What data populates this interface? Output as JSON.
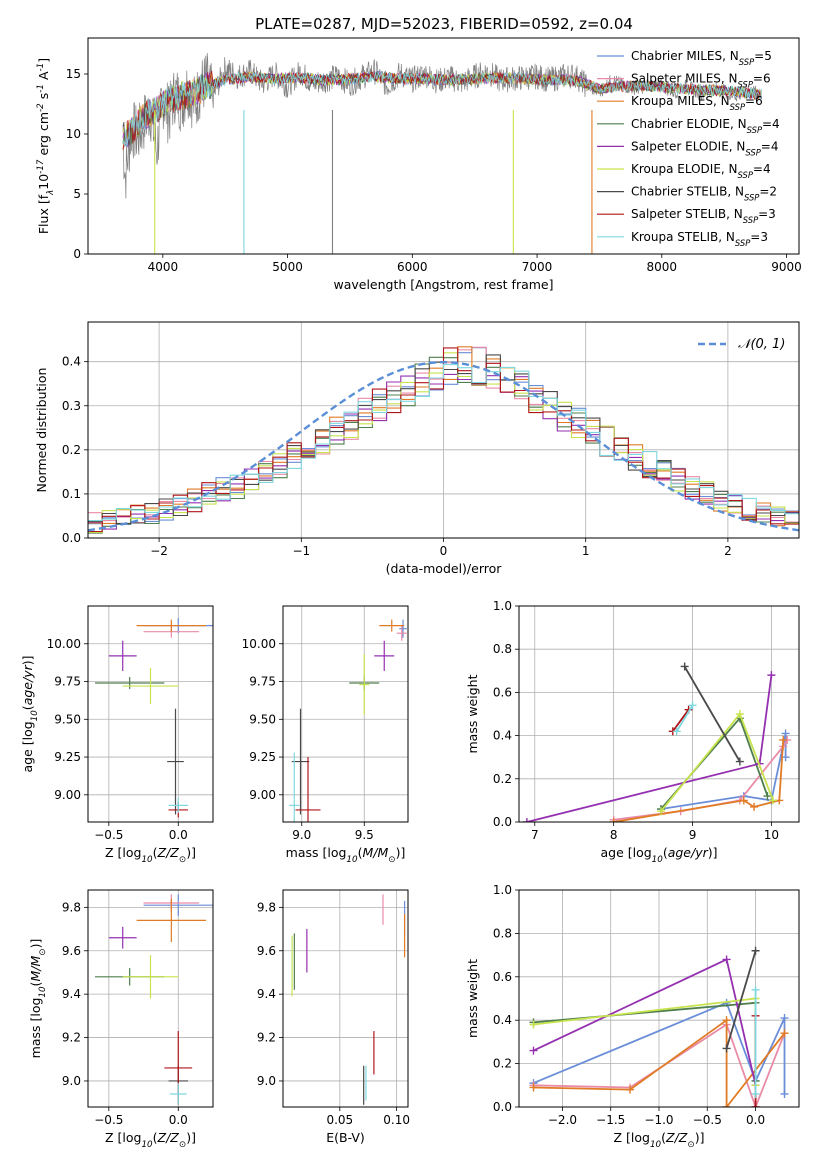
{
  "figure": {
    "title": "PLATE=0287, MJD=52023, FIBERID=0592, z=0.04"
  },
  "models": [
    {
      "name": "Chabrier MILES, N$_{SSP}$=5",
      "color": "#6a8ed8"
    },
    {
      "name": "Salpeter MILES, N$_{SSP}$=6",
      "color": "#e98ba6"
    },
    {
      "name": "Kroupa MILES, N$_{SSP}$=6",
      "color": "#e07b26"
    },
    {
      "name": "Chabrier ELODIE, N$_{SSP}$=4",
      "color": "#4f7f4d"
    },
    {
      "name": "Salpeter ELODIE, N$_{SSP}$=4",
      "color": "#9430b0"
    },
    {
      "name": "Kroupa ELODIE, N$_{SSP}$=4",
      "color": "#c7e34d"
    },
    {
      "name": "Chabrier STELIB, N$_{SSP}$=2",
      "color": "#4a4a4a"
    },
    {
      "name": "Salpeter STELIB, N$_{SSP}$=3",
      "color": "#b0151a"
    },
    {
      "name": "Kroupa STELIB, N$_{SSP}$=3",
      "color": "#7fd8e0"
    }
  ],
  "chart_data": [
    {
      "id": "spectrum",
      "type": "line",
      "xlabel": "wavelength [Angstrom, rest frame]",
      "ylabel": "Flux [f$_\\lambda$10$^{-17}$ erg cm$^{-2}$ s$^{-1}$ A$^{-1}$]",
      "xlim": [
        3400,
        9100
      ],
      "ylim": [
        0,
        18
      ],
      "xticks": [
        4000,
        5000,
        6000,
        7000,
        8000,
        9000
      ],
      "yticks": [
        0,
        5,
        10,
        15
      ],
      "legend": "top-right",
      "grid": false,
      "data_gray": {
        "color": "#808080",
        "x": [
          3680,
          3700,
          3750,
          3800,
          3850,
          3900,
          3950,
          4000,
          4050,
          4100,
          4150,
          4200,
          4250,
          4300,
          4350,
          4400,
          4500,
          4600,
          4700,
          4800,
          4900,
          5000,
          5100,
          5200,
          5300,
          5400,
          5500,
          5600,
          5700,
          5800,
          5900,
          6000,
          6100,
          6200,
          6300,
          6400,
          6500,
          6600,
          6700,
          6800,
          6900,
          7000,
          7100,
          7200,
          7300,
          7400,
          7500,
          7600,
          7700,
          7800,
          7900,
          8000,
          8100,
          8200,
          8300,
          8400,
          8500,
          8600,
          8700,
          8800
        ],
        "y": [
          9.5,
          6.5,
          10.5,
          9.8,
          11.0,
          12.0,
          8.5,
          13.0,
          11.5,
          13.5,
          12.5,
          14.0,
          12.5,
          13.8,
          14.5,
          13.0,
          15.5,
          14.8,
          15.2,
          14.2,
          15.0,
          14.0,
          15.2,
          14.2,
          14.5,
          14.8,
          14.2,
          14.8,
          15.2,
          14.0,
          15.0,
          14.5,
          15.0,
          14.4,
          14.7,
          14.3,
          14.8,
          15.2,
          14.5,
          14.6,
          14.7,
          14.8,
          14.5,
          14.8,
          14.9,
          14.0,
          13.5,
          14.5,
          14.0,
          13.8,
          14.1,
          14.0,
          13.5,
          14.0,
          13.4,
          13.8,
          13.6,
          13.2,
          13.6,
          13.3
        ]
      },
      "data_model": {
        "x": [
          3680,
          3750,
          3850,
          3950,
          4050,
          4150,
          4250,
          4350,
          4500,
          4700,
          4900,
          5100,
          5300,
          5500,
          5700,
          5900,
          6100,
          6300,
          6500,
          6700,
          6900,
          7100,
          7300,
          7500,
          7700,
          7900,
          8100,
          8300,
          8500,
          8700,
          8800
        ],
        "y": [
          9.8,
          10.2,
          11.5,
          12.0,
          12.8,
          13.2,
          13.5,
          14.0,
          14.5,
          14.8,
          14.6,
          14.7,
          14.5,
          14.6,
          14.8,
          14.6,
          14.6,
          14.5,
          14.6,
          14.7,
          14.6,
          14.5,
          14.5,
          13.8,
          14.0,
          14.0,
          13.8,
          13.7,
          13.6,
          13.4,
          13.3
        ]
      },
      "absorption_spikes": [
        {
          "x": 3935,
          "ymin": 0,
          "color": "#c7e34d"
        },
        {
          "x": 4650,
          "ymin": 0,
          "color": "#7fd8e0"
        },
        {
          "x": 5360,
          "ymin": 0,
          "color": "#808080"
        },
        {
          "x": 6810,
          "ymin": 0,
          "color": "#c7e34d"
        },
        {
          "x": 7440,
          "ymin": 0,
          "color": "#e07b26"
        }
      ]
    },
    {
      "id": "residual_hist",
      "type": "line",
      "xlabel": "(data-model)/error",
      "ylabel": "Normed distribution",
      "xlim": [
        -2.5,
        2.5
      ],
      "ylim": [
        0,
        0.49
      ],
      "xticks": [
        -2,
        -1,
        0,
        1,
        2
      ],
      "yticks": [
        0.0,
        0.1,
        0.2,
        0.3,
        0.4
      ],
      "grid": true,
      "legend": "top-right",
      "reference": {
        "name": "$\\mathcal{N}(0,1)$",
        "color": "#5a8fd8"
      },
      "bins_start": -2.5,
      "bin_width": 0.1,
      "base_counts": [
        0.035,
        0.04,
        0.045,
        0.05,
        0.055,
        0.065,
        0.075,
        0.085,
        0.1,
        0.11,
        0.115,
        0.13,
        0.15,
        0.165,
        0.185,
        0.2,
        0.22,
        0.24,
        0.26,
        0.28,
        0.3,
        0.32,
        0.34,
        0.36,
        0.375,
        0.39,
        0.395,
        0.39,
        0.375,
        0.36,
        0.34,
        0.32,
        0.3,
        0.28,
        0.26,
        0.24,
        0.22,
        0.2,
        0.185,
        0.165,
        0.15,
        0.13,
        0.115,
        0.1,
        0.085,
        0.075,
        0.065,
        0.055,
        0.05,
        0.045
      ]
    },
    {
      "id": "age_vs_Z",
      "type": "scatter",
      "xlabel": "Z [log$_{10}$($Z/Z_\\odot$)]",
      "ylabel": "age  [log$_{10}$($age/yr$)]",
      "xlim": [
        -0.65,
        0.25
      ],
      "ylim": [
        8.82,
        10.25
      ],
      "xticks": [
        -0.5,
        0.0
      ],
      "yticks": [
        9.0,
        9.25,
        9.5,
        9.75,
        10.0
      ],
      "grid": true,
      "points": [
        {
          "m": 0,
          "x": 0.0,
          "y": 10.12,
          "xe": 0.25,
          "ye": 0.05
        },
        {
          "m": 1,
          "x": -0.05,
          "y": 10.08,
          "xe": 0.2,
          "ye": 0.04
        },
        {
          "m": 2,
          "x": -0.05,
          "y": 10.12,
          "xe": 0.25,
          "ye": 0.04
        },
        {
          "m": 3,
          "x": -0.35,
          "y": 9.74,
          "xe": 0.25,
          "ye": 0.04
        },
        {
          "m": 4,
          "x": -0.4,
          "y": 9.92,
          "xe": 0.1,
          "ye": 0.1
        },
        {
          "m": 5,
          "x": -0.2,
          "y": 9.72,
          "xe": 0.2,
          "ye": 0.12
        },
        {
          "m": 6,
          "x": -0.02,
          "y": 9.22,
          "xe": 0.06,
          "ye": 0.35
        },
        {
          "m": 7,
          "x": 0.0,
          "y": 8.9,
          "xe": 0.07,
          "ye": 0.05
        },
        {
          "m": 8,
          "x": 0.0,
          "y": 8.93,
          "xe": 0.07,
          "ye": 0.05
        }
      ]
    },
    {
      "id": "age_vs_mass",
      "type": "scatter",
      "xlabel": "mass [log$_{10}$($M/M_\\odot$)]",
      "ylabel": "",
      "xlim": [
        8.85,
        9.85
      ],
      "ylim": [
        8.82,
        10.25
      ],
      "xticks": [
        9.0,
        9.5
      ],
      "yticks": [
        9.0,
        9.25,
        9.5,
        9.75,
        10.0
      ],
      "grid": true,
      "points": [
        {
          "m": 0,
          "x": 9.81,
          "y": 10.1,
          "xe": 0.03,
          "ye": 0.06
        },
        {
          "m": 1,
          "x": 9.8,
          "y": 10.07,
          "xe": 0.04,
          "ye": 0.05
        },
        {
          "m": 2,
          "x": 9.72,
          "y": 10.12,
          "xe": 0.1,
          "ye": 0.04
        },
        {
          "m": 3,
          "x": 9.5,
          "y": 9.74,
          "xe": 0.12,
          "ye": 0.05
        },
        {
          "m": 4,
          "x": 9.66,
          "y": 9.92,
          "xe": 0.08,
          "ye": 0.1
        },
        {
          "m": 5,
          "x": 9.5,
          "y": 9.73,
          "xe": 0.04,
          "ye": 0.2
        },
        {
          "m": 6,
          "x": 8.99,
          "y": 9.22,
          "xe": 0.07,
          "ye": 0.35
        },
        {
          "m": 7,
          "x": 9.05,
          "y": 8.9,
          "xe": 0.1,
          "ye": 0.35
        },
        {
          "m": 8,
          "x": 8.94,
          "y": 8.93,
          "xe": 0.04,
          "ye": 0.35
        }
      ]
    },
    {
      "id": "massweight_vs_age",
      "type": "line",
      "xlabel": "age  [log$_{10}$($age/yr$)]",
      "ylabel": "mass weight",
      "xlim": [
        6.8,
        10.35
      ],
      "ylim": [
        0,
        1.0
      ],
      "xticks": [
        7,
        8,
        9,
        10
      ],
      "yticks": [
        0.0,
        0.2,
        0.4,
        0.6,
        0.8,
        1.0
      ],
      "grid": true,
      "series": [
        {
          "m": 0,
          "x": [
            8.6,
            9.65,
            10.0,
            10.18,
            10.18
          ],
          "y": [
            0.06,
            0.12,
            0.1,
            0.41,
            0.3
          ]
        },
        {
          "m": 1,
          "x": [
            8.0,
            8.85,
            9.6,
            10.15,
            10.2
          ],
          "y": [
            0.01,
            0.05,
            0.1,
            0.35,
            0.38
          ]
        },
        {
          "m": 2,
          "x": [
            8.0,
            9.65,
            9.78,
            10.1,
            10.15
          ],
          "y": [
            0.0,
            0.1,
            0.07,
            0.1,
            0.38
          ]
        },
        {
          "m": 3,
          "x": [
            8.6,
            9.6,
            9.95
          ],
          "y": [
            0.06,
            0.48,
            0.12
          ]
        },
        {
          "m": 4,
          "x": [
            6.9,
            9.85,
            10.0
          ],
          "y": [
            0.0,
            0.27,
            0.68
          ]
        },
        {
          "m": 5,
          "x": [
            8.6,
            9.6,
            10.02
          ],
          "y": [
            0.05,
            0.5,
            0.1
          ]
        },
        {
          "m": 6,
          "x": [
            8.9,
            9.6
          ],
          "y": [
            0.72,
            0.28
          ]
        },
        {
          "m": 7,
          "x": [
            8.75,
            8.95
          ],
          "y": [
            0.42,
            0.52
          ]
        },
        {
          "m": 8,
          "x": [
            8.8,
            9.0
          ],
          "y": [
            0.42,
            0.54
          ]
        }
      ]
    },
    {
      "id": "mass_vs_Z",
      "type": "scatter",
      "xlabel": "Z [log$_{10}$($Z/Z_\\odot$)]",
      "ylabel": "mass [log$_{10}$($M/M_\\odot$)]",
      "xlim": [
        -0.65,
        0.25
      ],
      "ylim": [
        8.88,
        9.88
      ],
      "xticks": [
        -0.5,
        0.0
      ],
      "yticks": [
        9.0,
        9.2,
        9.4,
        9.6,
        9.8
      ],
      "grid": true,
      "points": [
        {
          "m": 0,
          "x": 0.0,
          "y": 9.81,
          "xe": 0.25,
          "ye": 0.05
        },
        {
          "m": 1,
          "x": -0.05,
          "y": 9.82,
          "xe": 0.2,
          "ye": 0.04
        },
        {
          "m": 2,
          "x": -0.05,
          "y": 9.74,
          "xe": 0.25,
          "ye": 0.1
        },
        {
          "m": 3,
          "x": -0.35,
          "y": 9.48,
          "xe": 0.25,
          "ye": 0.04
        },
        {
          "m": 4,
          "x": -0.4,
          "y": 9.66,
          "xe": 0.1,
          "ye": 0.05
        },
        {
          "m": 5,
          "x": -0.2,
          "y": 9.48,
          "xe": 0.2,
          "ye": 0.1
        },
        {
          "m": 6,
          "x": 0.0,
          "y": 9.0,
          "xe": 0.07,
          "ye": 0.07
        },
        {
          "m": 7,
          "x": 0.0,
          "y": 9.06,
          "xe": 0.1,
          "ye": 0.17
        },
        {
          "m": 8,
          "x": 0.0,
          "y": 8.94,
          "xe": 0.06,
          "ye": 0.05
        }
      ]
    },
    {
      "id": "mass_vs_ebv",
      "type": "scatter",
      "xlabel": "E(B-V)",
      "ylabel": "",
      "xlim": [
        0.0,
        0.11
      ],
      "ylim": [
        8.88,
        9.88
      ],
      "xticks": [
        0.05,
        0.1
      ],
      "yticks": [
        9.0,
        9.2,
        9.4,
        9.6,
        9.8
      ],
      "grid": true,
      "points": [
        {
          "m": 0,
          "x": 0.107,
          "y": 9.75,
          "xe": 0,
          "ye": 0.08
        },
        {
          "m": 1,
          "x": 0.088,
          "y": 9.79,
          "xe": 0,
          "ye": 0.07
        },
        {
          "m": 2,
          "x": 0.107,
          "y": 9.67,
          "xe": 0,
          "ye": 0.1
        },
        {
          "m": 3,
          "x": 0.01,
          "y": 9.55,
          "xe": 0,
          "ye": 0.13
        },
        {
          "m": 4,
          "x": 0.021,
          "y": 9.6,
          "xe": 0,
          "ye": 0.1
        },
        {
          "m": 5,
          "x": 0.008,
          "y": 9.53,
          "xe": 0,
          "ye": 0.14
        },
        {
          "m": 6,
          "x": 0.071,
          "y": 8.98,
          "xe": 0,
          "ye": 0.09
        },
        {
          "m": 7,
          "x": 0.08,
          "y": 9.13,
          "xe": 0,
          "ye": 0.1
        },
        {
          "m": 8,
          "x": 0.073,
          "y": 8.99,
          "xe": 0,
          "ye": 0.08
        }
      ]
    },
    {
      "id": "massweight_vs_Z",
      "type": "line",
      "xlabel": "Z [log$_{10}$($Z/Z_\\odot$)]",
      "ylabel": "mass weight",
      "xlim": [
        -2.45,
        0.45
      ],
      "ylim": [
        0,
        1.0
      ],
      "xticks": [
        -2.0,
        -1.5,
        -1.0,
        -0.5,
        0.0
      ],
      "yticks": [
        0.0,
        0.2,
        0.4,
        0.6,
        0.8,
        1.0
      ],
      "grid": true,
      "series": [
        {
          "m": 0,
          "x": [
            -2.3,
            -0.3,
            0.0,
            0.3,
            0.3
          ],
          "y": [
            0.11,
            0.48,
            0.12,
            0.41,
            0.06
          ]
        },
        {
          "m": 1,
          "x": [
            -2.3,
            -1.3,
            -0.3,
            0.0,
            0.3
          ],
          "y": [
            0.1,
            0.09,
            0.38,
            0.0,
            0.34
          ]
        },
        {
          "m": 2,
          "x": [
            -2.3,
            -1.3,
            -0.3,
            -0.3,
            0.3
          ],
          "y": [
            0.09,
            0.08,
            0.4,
            0.0,
            0.34
          ]
        },
        {
          "m": 3,
          "x": [
            -2.3,
            0.0,
            0.0
          ],
          "y": [
            0.39,
            0.48,
            0.12
          ]
        },
        {
          "m": 4,
          "x": [
            -2.3,
            -0.3,
            0.0
          ],
          "y": [
            0.26,
            0.68,
            0.1
          ]
        },
        {
          "m": 5,
          "x": [
            -2.3,
            0.0,
            0.0
          ],
          "y": [
            0.38,
            0.5,
            0.1
          ]
        },
        {
          "m": 6,
          "x": [
            -0.3,
            0.0
          ],
          "y": [
            0.27,
            0.72
          ]
        },
        {
          "m": 7,
          "x": [
            0.0,
            0.0
          ],
          "y": [
            0.42,
            0.0
          ]
        },
        {
          "m": 8,
          "x": [
            0.0,
            0.0
          ],
          "y": [
            0.54,
            0.06
          ]
        }
      ]
    }
  ]
}
